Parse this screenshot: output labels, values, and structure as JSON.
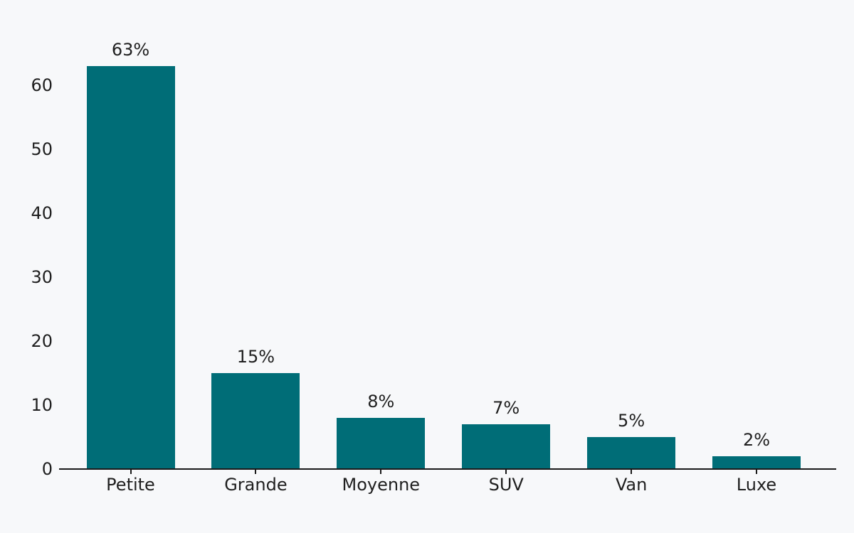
{
  "page": {
    "background": "#f7f8fa"
  },
  "chart_data": {
    "type": "bar",
    "categories": [
      "Petite",
      "Grande",
      "Moyenne",
      "SUV",
      "Van",
      "Luxe"
    ],
    "values": [
      63,
      15,
      8,
      7,
      5,
      2
    ],
    "value_labels": [
      "63%",
      "15%",
      "8%",
      "7%",
      "5%",
      "2%"
    ],
    "ytick_labels": [
      "0",
      "10",
      "20",
      "30",
      "40",
      "50",
      "60"
    ],
    "yticks": [
      0,
      10,
      20,
      30,
      40,
      50,
      60
    ],
    "ylim": [
      0,
      63
    ],
    "grid": false,
    "legend": "none",
    "bar_color": "#006d77",
    "axis_color": "#1a1a1a",
    "text_color": "#1f1f1f"
  }
}
